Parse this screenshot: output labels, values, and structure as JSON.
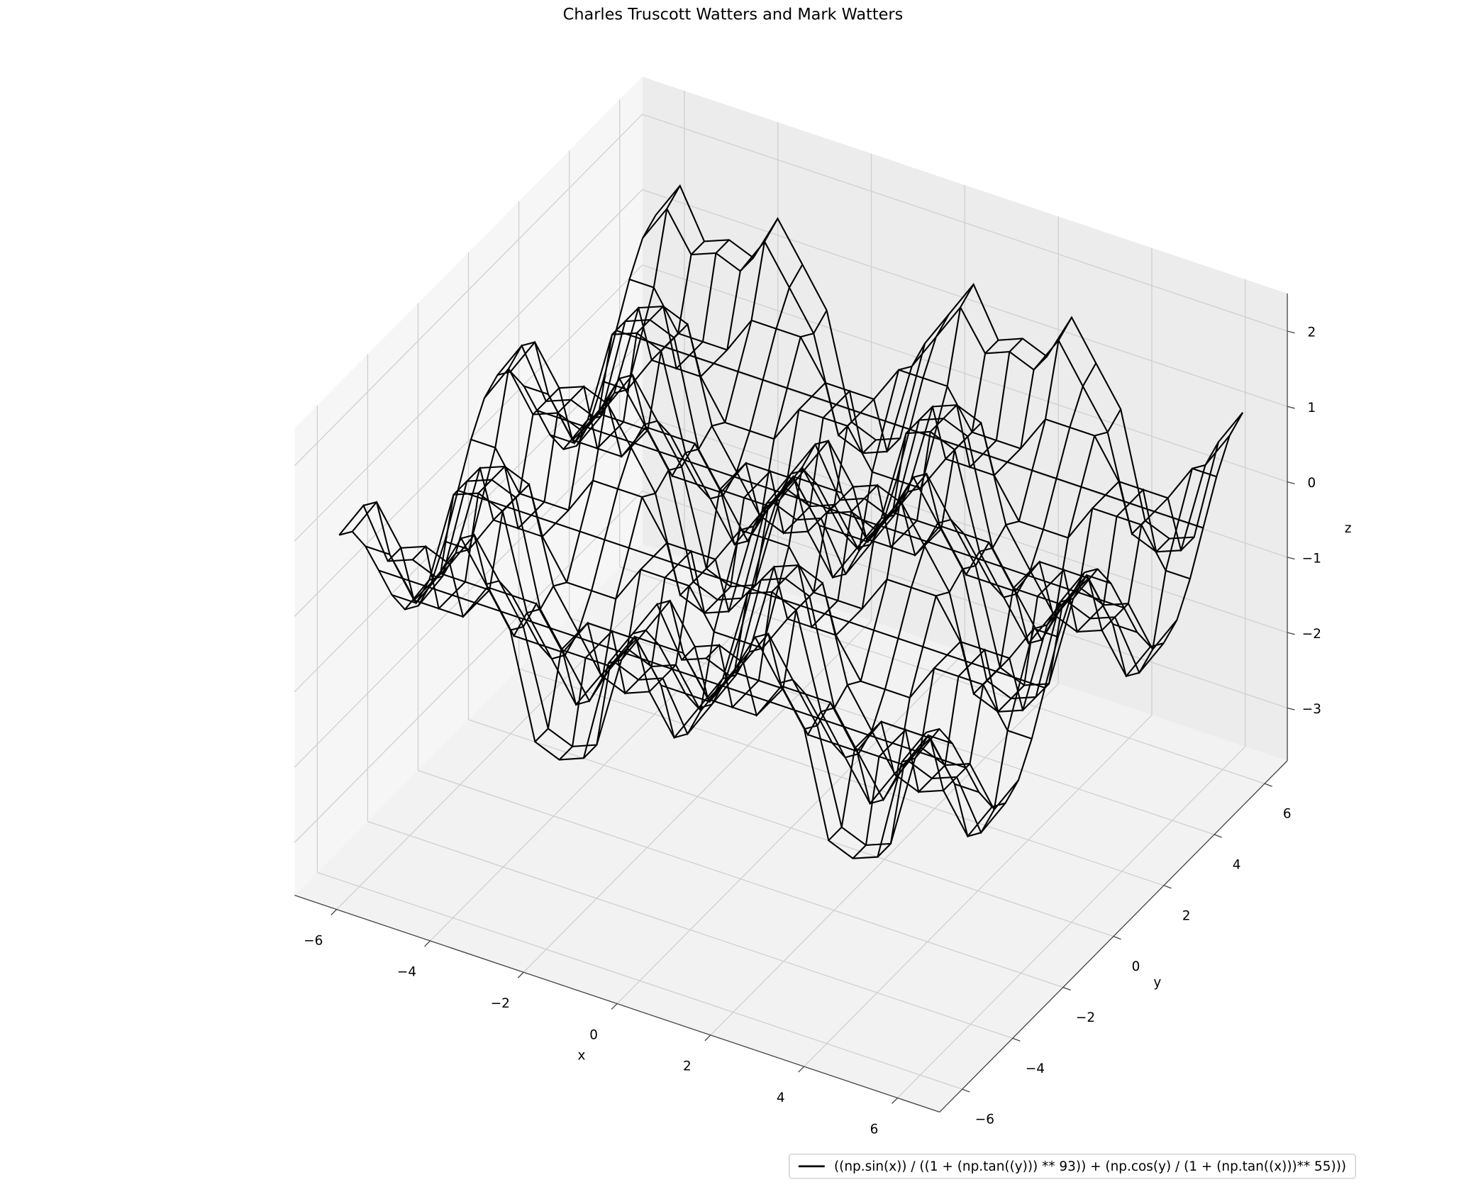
{
  "chart_data": {
    "type": "wireframe3d",
    "title": "Charles Truscott Watters and Mark Watters",
    "xlabel": "x",
    "ylabel": "y",
    "zlabel": "z",
    "xlim": [
      -6.9,
      6.9
    ],
    "ylim": [
      -6.9,
      6.9
    ],
    "zlim": [
      -3.7,
      2.5
    ],
    "xticks": [
      {
        "value": -6,
        "label": "−6"
      },
      {
        "value": -4,
        "label": "−4"
      },
      {
        "value": -2,
        "label": "−2"
      },
      0,
      2,
      4,
      6
    ],
    "yticks": [
      {
        "value": -6,
        "label": "−6"
      },
      {
        "value": -4,
        "label": "−4"
      },
      {
        "value": -2,
        "label": "−2"
      },
      0,
      2,
      4,
      6
    ],
    "zticks": [
      {
        "value": -3,
        "label": "−3"
      },
      {
        "value": -2,
        "label": "−2"
      },
      {
        "value": -1,
        "label": "−1"
      },
      0,
      1,
      2
    ],
    "grid": true,
    "legend": "lower right",
    "series": [
      {
        "name": "((np.sin(x)) / ((1 + (np.tan((y))) ** 93)) + (np.cos(y) / (1 + (np.tan((x)))** 55)))",
        "color": "#000000"
      }
    ],
    "x": [
      -6.28,
      -5.76,
      -5.24,
      -4.71,
      -4.19,
      -3.67,
      -3.14,
      -2.62,
      -2.09,
      -1.57,
      -1.05,
      -0.52,
      0,
      0.52,
      1.05,
      1.57,
      2.09,
      2.62,
      3.14,
      3.67,
      4.19,
      4.71,
      5.24,
      5.76,
      6.28
    ],
    "y": [
      -6.28,
      -5.76,
      -5.24,
      -4.71,
      -4.19,
      -3.67,
      -3.14,
      -2.62,
      -2.09,
      -1.57,
      -1.05,
      -0.52,
      0,
      0.52,
      1.05,
      1.57,
      2.09,
      2.62,
      3.14,
      3.67,
      4.19,
      4.71,
      5.24,
      5.76,
      6.28
    ],
    "z": [
      [
        1,
        1.5,
        0.87,
        1,
        0.87,
        1.5,
        1,
        0.5,
        -0.87,
        -1,
        -0.87,
        0.5,
        1,
        1.5,
        0.87,
        1,
        0.87,
        1.5,
        1,
        0.5,
        -0.87,
        -1,
        -0.87,
        0.5,
        1
      ],
      [
        0.87,
        1.37,
        0.87,
        1,
        0.87,
        1.37,
        0.87,
        0.37,
        -0.87,
        -1,
        -0.87,
        0.37,
        0.87,
        1.37,
        0.87,
        1,
        0.87,
        1.37,
        0.87,
        0.37,
        -0.87,
        -1,
        -0.87,
        0.37,
        0.87
      ],
      [
        0.5,
        0.5,
        0,
        0,
        0,
        0.5,
        0.5,
        0.5,
        0,
        0,
        0,
        0.5,
        0.5,
        0.5,
        0,
        0,
        0,
        0.5,
        0.5,
        0.5,
        0,
        0,
        0,
        0.5,
        0.5
      ],
      [
        0,
        0,
        0,
        0,
        0,
        0,
        0,
        0,
        0,
        0,
        0,
        0,
        0,
        0,
        0,
        0,
        0,
        0,
        0,
        0,
        0,
        0,
        0,
        0,
        0
      ],
      [
        -0.5,
        -0.5,
        0,
        0,
        0,
        -0.5,
        -0.5,
        -0.5,
        0,
        0,
        0,
        -0.5,
        -0.5,
        -0.5,
        0,
        0,
        0,
        -0.5,
        -0.5,
        -0.5,
        0,
        0,
        0,
        -0.5,
        -0.5
      ],
      [
        -0.87,
        -0.37,
        0.87,
        1,
        0.87,
        -0.37,
        -0.87,
        -1.37,
        -0.87,
        -1,
        -0.87,
        -1.37,
        -0.87,
        -0.37,
        0.87,
        1,
        0.87,
        -0.37,
        -0.87,
        -1.37,
        -0.87,
        -1,
        -0.87,
        -1.37,
        -0.87
      ],
      [
        -1,
        -0.5,
        0.87,
        1,
        0.87,
        -0.5,
        -1,
        -1.5,
        -0.87,
        -1,
        -0.87,
        -1.5,
        -1,
        -0.5,
        0.87,
        1,
        0.87,
        -0.5,
        -1,
        -1.5,
        -0.87,
        -1,
        -0.87,
        -1.5,
        -1
      ],
      [
        -0.87,
        -0.37,
        0.87,
        1,
        0.87,
        -0.37,
        -0.87,
        -1.37,
        -0.87,
        -1,
        -0.87,
        -1.37,
        -0.87,
        -0.37,
        0.87,
        1,
        0.87,
        -0.37,
        -0.87,
        -1.37,
        -0.87,
        -1,
        -0.87,
        -1.37,
        -0.87
      ],
      [
        -0.5,
        -0.5,
        0,
        0,
        0,
        -0.5,
        -0.5,
        -0.5,
        0,
        0,
        0,
        -0.5,
        -0.5,
        -0.5,
        0,
        0,
        0,
        -0.5,
        -0.5,
        -0.5,
        0,
        0,
        0,
        -0.5,
        -0.5
      ],
      [
        0,
        0,
        0,
        0,
        0,
        0,
        0,
        0,
        0,
        0,
        0,
        0,
        0,
        0,
        0,
        0,
        0,
        0,
        0,
        0,
        0,
        0,
        0,
        0,
        0
      ],
      [
        0.5,
        0.5,
        0,
        0,
        0,
        0.5,
        0.5,
        0.5,
        0,
        0,
        0,
        0.5,
        0.5,
        0.5,
        0,
        0,
        0,
        0.5,
        0.5,
        0.5,
        0,
        0,
        0,
        0.5,
        0.5
      ],
      [
        0.87,
        1.37,
        0.87,
        1,
        0.87,
        1.37,
        0.87,
        0.37,
        -0.87,
        -1,
        -0.87,
        0.37,
        0.87,
        1.37,
        0.87,
        1,
        0.87,
        1.37,
        0.87,
        0.37,
        -0.87,
        -1,
        -0.87,
        0.37,
        0.87
      ],
      [
        1,
        1.5,
        0.87,
        1,
        0.87,
        1.5,
        1,
        0.5,
        -0.87,
        -1,
        -0.87,
        0.5,
        1,
        1.5,
        0.87,
        1,
        0.87,
        1.5,
        1,
        0.5,
        -0.87,
        -1,
        -0.87,
        0.5,
        1
      ],
      [
        0.87,
        1.37,
        0.87,
        1,
        0.87,
        1.37,
        0.87,
        0.37,
        -0.87,
        -1,
        -0.87,
        0.37,
        0.87,
        1.37,
        0.87,
        1,
        0.87,
        1.37,
        0.87,
        0.37,
        -0.87,
        -1,
        -0.87,
        0.37,
        0.87
      ],
      [
        0.5,
        0.5,
        0,
        0,
        0,
        0.5,
        0.5,
        0.5,
        0,
        0,
        0,
        0.5,
        0.5,
        0.5,
        0,
        0,
        0,
        0.5,
        0.5,
        0.5,
        0,
        0,
        0,
        0.5,
        0.5
      ],
      [
        0,
        0,
        0,
        0,
        0,
        0,
        0,
        0,
        0,
        0,
        0,
        0,
        0,
        0,
        0,
        0,
        0,
        0,
        0,
        0,
        0,
        0,
        0,
        0,
        0
      ],
      [
        -0.5,
        -0.5,
        0,
        0,
        0,
        -0.5,
        -0.5,
        -0.5,
        0,
        0,
        0,
        -0.5,
        -0.5,
        -0.5,
        0,
        0,
        0,
        -0.5,
        -0.5,
        -0.5,
        0,
        0,
        0,
        -0.5,
        -0.5
      ],
      [
        -0.87,
        -0.37,
        0.87,
        1,
        0.87,
        -0.37,
        -0.87,
        -1.37,
        -0.87,
        -1,
        -0.87,
        -1.37,
        -0.87,
        -0.37,
        0.87,
        1,
        0.87,
        -0.37,
        -0.87,
        -1.37,
        -0.87,
        -1,
        -0.87,
        -1.37,
        -0.87
      ],
      [
        -1,
        -0.5,
        0.87,
        1,
        0.87,
        -0.5,
        -1,
        -1.5,
        -0.87,
        -1,
        -0.87,
        -1.5,
        -1,
        -0.5,
        0.87,
        1,
        0.87,
        -0.5,
        -1,
        -1.5,
        -0.87,
        -1,
        -0.87,
        -1.5,
        -1
      ],
      [
        -0.87,
        -0.37,
        0.87,
        1,
        0.87,
        -0.37,
        -0.87,
        -1.37,
        -0.87,
        -1,
        -0.87,
        -1.37,
        -0.87,
        -0.37,
        0.87,
        1,
        0.87,
        -0.37,
        -0.87,
        -1.37,
        -0.87,
        -1,
        -0.87,
        -1.37,
        -0.87
      ],
      [
        -0.5,
        -0.5,
        0,
        0,
        0,
        -0.5,
        -0.5,
        -0.5,
        0,
        0,
        0,
        -0.5,
        -0.5,
        -0.5,
        0,
        0,
        0,
        -0.5,
        -0.5,
        -0.5,
        0,
        0,
        0,
        -0.5,
        -0.5
      ],
      [
        0,
        0,
        0,
        0,
        0,
        0,
        0,
        0,
        0,
        0,
        0,
        0,
        0,
        0,
        0,
        0,
        0,
        0,
        0,
        0,
        0,
        0,
        0,
        0,
        0
      ],
      [
        0.5,
        0.5,
        0,
        0,
        0,
        0.5,
        0.5,
        0.5,
        0,
        0,
        0,
        0.5,
        0.5,
        0.5,
        0,
        0,
        0,
        0.5,
        0.5,
        0.5,
        0,
        0,
        0,
        0.5,
        0.5
      ],
      [
        0.87,
        1.37,
        0.87,
        1,
        0.87,
        1.37,
        0.87,
        0.37,
        -0.87,
        -1,
        -0.87,
        0.37,
        0.87,
        1.37,
        0.87,
        1,
        0.87,
        1.37,
        0.87,
        0.37,
        -0.87,
        -1,
        -0.87,
        0.37,
        0.87
      ],
      [
        1,
        1.5,
        0.87,
        1,
        0.87,
        1.5,
        1,
        0.5,
        -0.87,
        -1,
        -0.87,
        0.5,
        1,
        1.5,
        0.87,
        1,
        0.87,
        1.5,
        1,
        0.5,
        -0.87,
        -1,
        -0.87,
        0.5,
        1
      ]
    ]
  }
}
